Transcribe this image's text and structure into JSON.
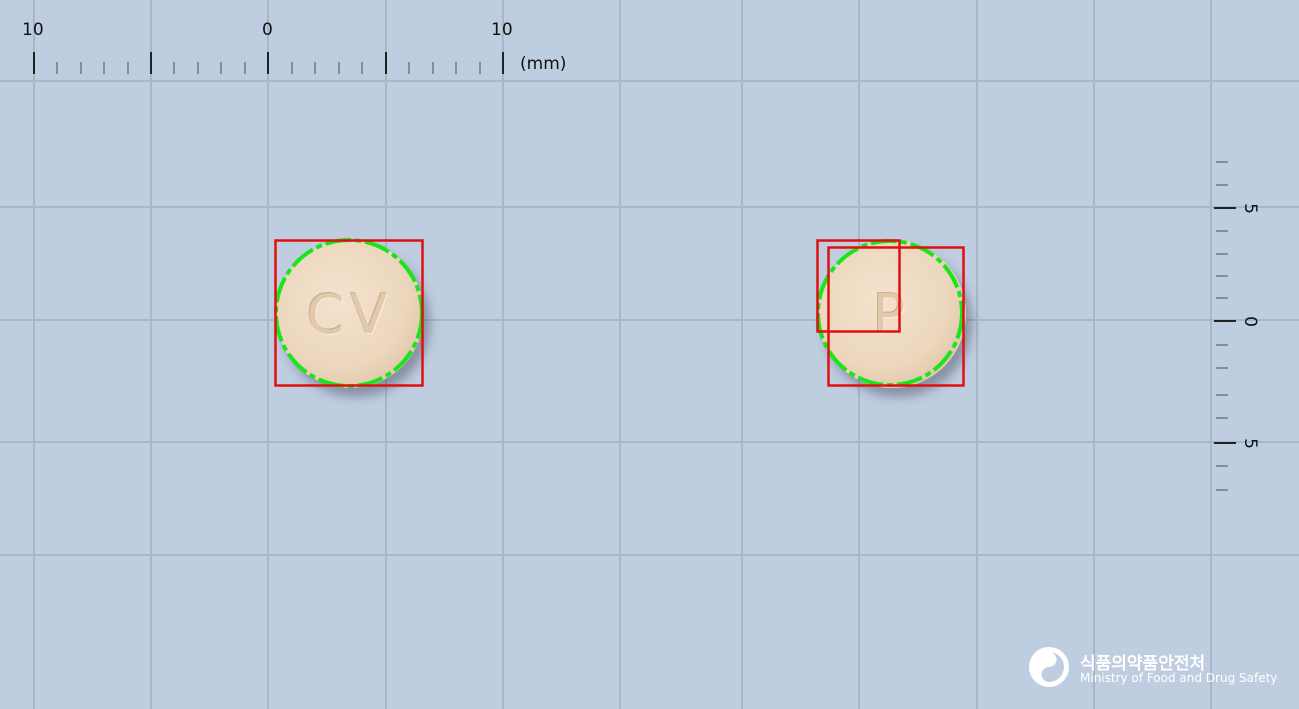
{
  "ruler": {
    "horizontal_labels": [
      "10",
      "0",
      "10"
    ],
    "unit": "(mm)",
    "vertical_labels": [
      "5",
      "0",
      "5"
    ]
  },
  "pills": [
    {
      "imprint": "CV",
      "color": "#ecd7bd"
    },
    {
      "imprint": "P",
      "color": "#ecd7bd"
    }
  ],
  "colors": {
    "background": "#bfcde0",
    "grid_line": "#a9b6c8",
    "bounding_box": "#e01010",
    "contour": "#19e619"
  },
  "logo": {
    "icon": "taegeuk-swirl-icon",
    "korean": "식품의약품안전처",
    "english": "Ministry of Food and Drug Safety"
  }
}
